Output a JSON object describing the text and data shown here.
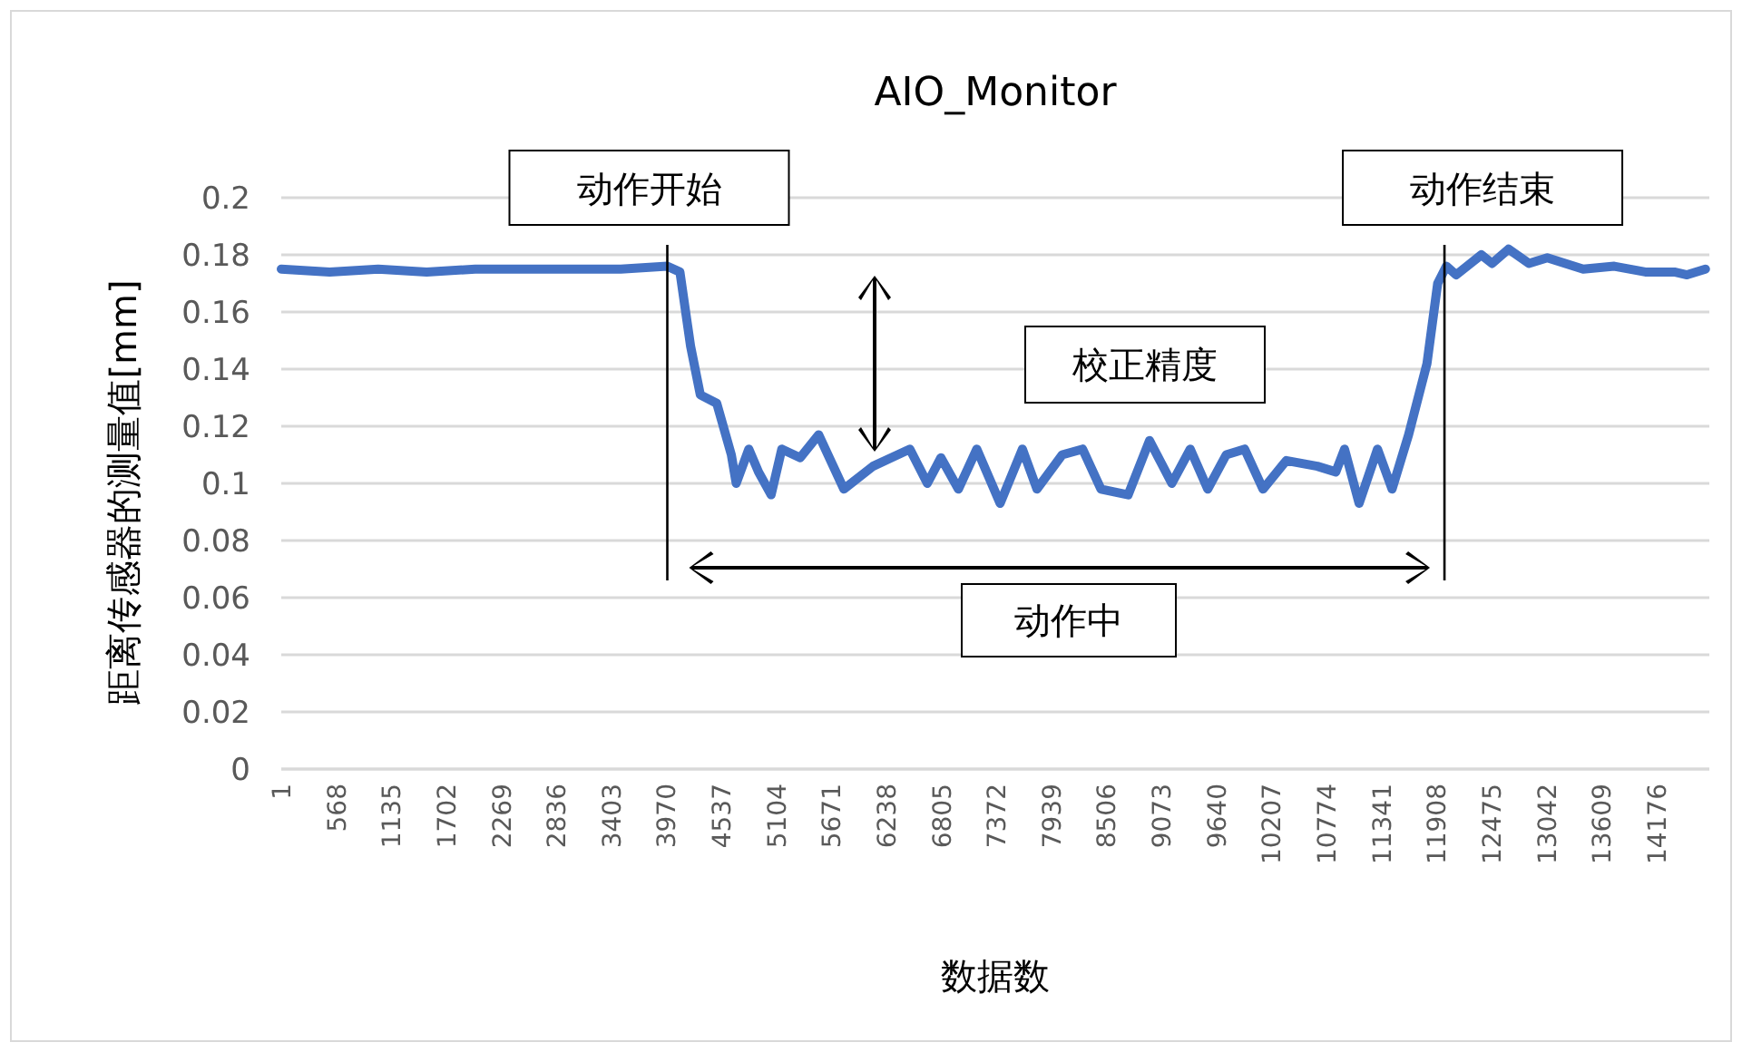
{
  "chart_data": {
    "type": "line",
    "title": "AIO_Monitor",
    "xlabel": "数据数",
    "ylabel": "距离传感器的测量值[mm]",
    "xlim": [
      1,
      14720
    ],
    "xticks": [
      1,
      568,
      1135,
      1702,
      2269,
      2836,
      3403,
      3970,
      4537,
      5104,
      5671,
      6238,
      6805,
      7372,
      7939,
      8506,
      9073,
      9640,
      10207,
      10774,
      11341,
      11908,
      12475,
      13042,
      13609,
      14176
    ],
    "ylim": [
      0,
      0.2
    ],
    "yticks": [
      0,
      0.02,
      0.04,
      0.06,
      0.08,
      0.1,
      0.12,
      0.14,
      0.16,
      0.18,
      0.2
    ],
    "grid": "y",
    "legend": false,
    "marker": "none",
    "line_style": "solid",
    "ref_lines": [
      {
        "axis": "x",
        "value": 3980,
        "label": "动作开始",
        "color": "#000000"
      },
      {
        "axis": "x",
        "value": 11990,
        "label": "动作结束",
        "color": "#000000"
      }
    ],
    "annotations": [
      "校正精度",
      "动作中"
    ],
    "series": [
      {
        "color": "#4472c4",
        "x": [
          1,
          500,
          1000,
          1500,
          2000,
          2500,
          3000,
          3500,
          3980,
          4110,
          4220,
          4320,
          4490,
          4640,
          4690,
          4820,
          4920,
          5050,
          5160,
          5350,
          5540,
          5800,
          6100,
          6480,
          6660,
          6800,
          6980,
          7170,
          7410,
          7640,
          7790,
          8050,
          8260,
          8450,
          8730,
          8950,
          9180,
          9370,
          9550,
          9740,
          9930,
          10120,
          10360,
          10680,
          10870,
          10960,
          11110,
          11300,
          11450,
          11620,
          11810,
          11920,
          12010,
          12110,
          12370,
          12480,
          12650,
          12860,
          13050,
          13420,
          13740,
          14060,
          14360,
          14490,
          14680
        ],
        "values": [
          0.175,
          0.174,
          0.175,
          0.174,
          0.175,
          0.175,
          0.175,
          0.175,
          0.176,
          0.174,
          0.148,
          0.131,
          0.128,
          0.11,
          0.1,
          0.112,
          0.104,
          0.096,
          0.112,
          0.109,
          0.117,
          0.098,
          0.106,
          0.112,
          0.1,
          0.109,
          0.098,
          0.112,
          0.093,
          0.112,
          0.098,
          0.11,
          0.112,
          0.098,
          0.096,
          0.115,
          0.1,
          0.112,
          0.098,
          0.11,
          0.112,
          0.098,
          0.108,
          0.106,
          0.104,
          0.112,
          0.093,
          0.112,
          0.098,
          0.117,
          0.142,
          0.17,
          0.176,
          0.173,
          0.18,
          0.177,
          0.182,
          0.177,
          0.179,
          0.175,
          0.176,
          0.174,
          0.174,
          0.173,
          0.175
        ]
      }
    ]
  }
}
